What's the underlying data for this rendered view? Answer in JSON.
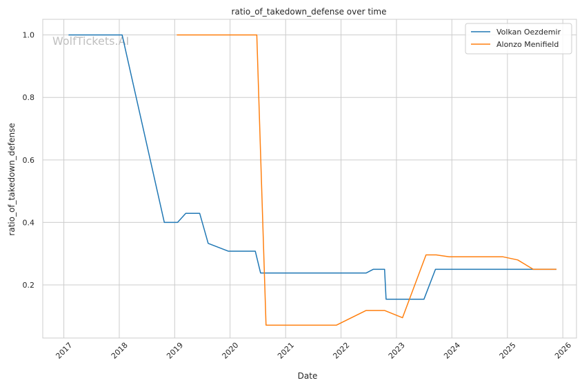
{
  "chart_data": {
    "type": "line",
    "title": "ratio_of_takedown_defense over time",
    "xlabel": "Date",
    "ylabel": "ratio_of_takedown_defense",
    "watermark": "WolfTickets.AI",
    "xlim": [
      "2016-08-15",
      "2026-04-01"
    ],
    "ylim": [
      0.03,
      1.05
    ],
    "x_ticks": [
      "2017",
      "2018",
      "2019",
      "2020",
      "2021",
      "2022",
      "2023",
      "2024",
      "2025",
      "2026"
    ],
    "y_ticks": [
      "0.2",
      "0.4",
      "0.6",
      "0.8",
      "1.0"
    ],
    "grid": true,
    "legend_position": "top-right",
    "colors": {
      "Volkan Oezdemir": "#1f77b4",
      "Alonzo Menifield": "#ff7f0e"
    },
    "series": [
      {
        "name": "Volkan Oezdemir",
        "points": [
          [
            "2017-02-01",
            1.0
          ],
          [
            "2018-01-20",
            1.0
          ],
          [
            "2018-10-25",
            0.4
          ],
          [
            "2019-01-20",
            0.4
          ],
          [
            "2019-03-15",
            0.429
          ],
          [
            "2019-06-15",
            0.429
          ],
          [
            "2019-08-10",
            0.333
          ],
          [
            "2019-12-20",
            0.308
          ],
          [
            "2020-06-15",
            0.308
          ],
          [
            "2020-07-20",
            0.238
          ],
          [
            "2022-06-15",
            0.238
          ],
          [
            "2022-08-01",
            0.25
          ],
          [
            "2022-10-15",
            0.25
          ],
          [
            "2022-10-25",
            0.154
          ],
          [
            "2023-07-01",
            0.154
          ],
          [
            "2023-09-15",
            0.25
          ],
          [
            "2025-11-20",
            0.25
          ]
        ]
      },
      {
        "name": "Alonzo Menifield",
        "points": [
          [
            "2019-01-15",
            1.0
          ],
          [
            "2020-06-25",
            1.0
          ],
          [
            "2020-08-25",
            0.071
          ],
          [
            "2021-12-01",
            0.071
          ],
          [
            "2022-06-15",
            0.118
          ],
          [
            "2022-10-15",
            0.118
          ],
          [
            "2023-02-10",
            0.095
          ],
          [
            "2023-07-15",
            0.296
          ],
          [
            "2023-09-20",
            0.296
          ],
          [
            "2023-12-15",
            0.29
          ],
          [
            "2024-12-01",
            0.29
          ],
          [
            "2025-03-10",
            0.28
          ],
          [
            "2025-06-20",
            0.25
          ],
          [
            "2025-11-20",
            0.25
          ]
        ]
      }
    ]
  }
}
